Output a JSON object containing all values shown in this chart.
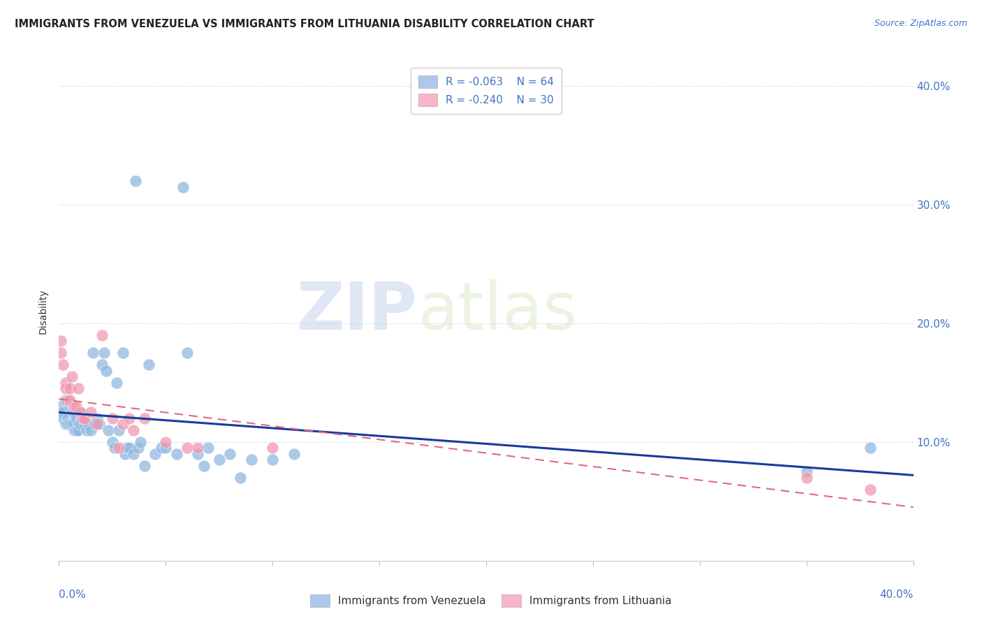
{
  "title": "IMMIGRANTS FROM VENEZUELA VS IMMIGRANTS FROM LITHUANIA DISABILITY CORRELATION CHART",
  "source": "Source: ZipAtlas.com",
  "ylabel": "Disability",
  "xmin": 0.0,
  "xmax": 0.4,
  "ymin": 0.0,
  "ymax": 0.42,
  "yticks": [
    0.0,
    0.1,
    0.2,
    0.3,
    0.4
  ],
  "ytick_labels": [
    "",
    "10.0%",
    "20.0%",
    "30.0%",
    "40.0%"
  ],
  "watermark_zip": "ZIP",
  "watermark_atlas": "atlas",
  "legend_venezuela": {
    "R": -0.063,
    "N": 64,
    "color": "#adc8e8"
  },
  "legend_lithuania": {
    "R": -0.24,
    "N": 30,
    "color": "#f5b8c8"
  },
  "ven_color": "#90b8e0",
  "lit_color": "#f09ab0",
  "trend_ven_color": "#1a3a9c",
  "trend_lit_color": "#e06880",
  "venezuela_x": [
    0.001,
    0.002,
    0.002,
    0.003,
    0.003,
    0.004,
    0.004,
    0.005,
    0.005,
    0.006,
    0.006,
    0.007,
    0.007,
    0.007,
    0.008,
    0.008,
    0.009,
    0.009,
    0.01,
    0.01,
    0.011,
    0.012,
    0.013,
    0.014,
    0.015,
    0.016,
    0.017,
    0.018,
    0.019,
    0.02,
    0.021,
    0.022,
    0.023,
    0.025,
    0.026,
    0.027,
    0.028,
    0.03,
    0.031,
    0.032,
    0.033,
    0.035,
    0.036,
    0.037,
    0.038,
    0.04,
    0.042,
    0.045,
    0.048,
    0.05,
    0.055,
    0.058,
    0.06,
    0.065,
    0.068,
    0.07,
    0.075,
    0.08,
    0.085,
    0.09,
    0.1,
    0.11,
    0.35,
    0.38
  ],
  "venezuela_y": [
    0.13,
    0.125,
    0.12,
    0.135,
    0.115,
    0.12,
    0.115,
    0.13,
    0.115,
    0.125,
    0.115,
    0.125,
    0.11,
    0.115,
    0.12,
    0.11,
    0.115,
    0.11,
    0.115,
    0.125,
    0.12,
    0.115,
    0.11,
    0.115,
    0.11,
    0.175,
    0.115,
    0.12,
    0.115,
    0.165,
    0.175,
    0.16,
    0.11,
    0.1,
    0.095,
    0.15,
    0.11,
    0.175,
    0.09,
    0.095,
    0.095,
    0.09,
    0.32,
    0.095,
    0.1,
    0.08,
    0.165,
    0.09,
    0.095,
    0.095,
    0.09,
    0.315,
    0.175,
    0.09,
    0.08,
    0.095,
    0.085,
    0.09,
    0.07,
    0.085,
    0.085,
    0.09,
    0.075,
    0.095
  ],
  "lithuania_x": [
    0.001,
    0.001,
    0.002,
    0.003,
    0.003,
    0.004,
    0.005,
    0.005,
    0.006,
    0.007,
    0.008,
    0.009,
    0.01,
    0.011,
    0.012,
    0.015,
    0.018,
    0.02,
    0.025,
    0.028,
    0.03,
    0.033,
    0.035,
    0.04,
    0.05,
    0.06,
    0.065,
    0.1,
    0.35,
    0.38
  ],
  "lithuania_y": [
    0.185,
    0.175,
    0.165,
    0.15,
    0.145,
    0.135,
    0.145,
    0.135,
    0.155,
    0.13,
    0.13,
    0.145,
    0.125,
    0.12,
    0.12,
    0.125,
    0.115,
    0.19,
    0.12,
    0.095,
    0.115,
    0.12,
    0.11,
    0.12,
    0.1,
    0.095,
    0.095,
    0.095,
    0.07,
    0.06
  ]
}
